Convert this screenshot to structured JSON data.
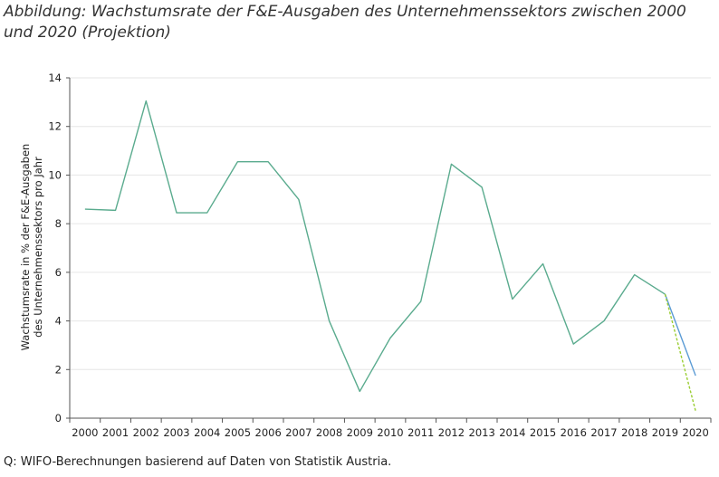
{
  "figure": {
    "title": "Abbildung: Wachstumsrate der F&E-Ausgaben des Unternehmenssektors zwischen 2000 und 2020 (Projektion)",
    "source": "Q: WIFO-Berechnungen basierend auf Daten von Statistik Austria."
  },
  "chart_data": {
    "type": "line",
    "title": "Abbildung: Wachstumsrate der F&E-Ausgaben des Unternehmenssektors zwischen 2000 und 2020 (Projektion)",
    "xlabel": "",
    "ylabel": [
      "Wachstumsrate in % der F&E-Ausgaben",
      "des Unternehmenssektors pro Jahr"
    ],
    "ylim": [
      0,
      14
    ],
    "yticks": [
      0,
      2,
      4,
      6,
      8,
      10,
      12,
      14
    ],
    "categories": [
      "2000",
      "2001",
      "2002",
      "2003",
      "2004",
      "2005",
      "2006",
      "2007",
      "2008",
      "2009",
      "2010",
      "2011",
      "2012",
      "2013",
      "2014",
      "2015",
      "2016",
      "2017",
      "2018",
      "2019",
      "2020"
    ],
    "grid": true,
    "series": [
      {
        "color": "#5aab8e",
        "dashed": false,
        "values": [
          8.6,
          8.55,
          13.05,
          8.45,
          8.45,
          10.55,
          10.55,
          9.0,
          4.0,
          1.1,
          3.3,
          4.8,
          10.45,
          9.5,
          4.9,
          6.35,
          3.05,
          4.0,
          5.9,
          5.1,
          null
        ]
      },
      {
        "color": "#5b9bd5",
        "dashed": false,
        "values": [
          null,
          null,
          null,
          null,
          null,
          null,
          null,
          null,
          null,
          null,
          null,
          null,
          null,
          null,
          null,
          null,
          null,
          null,
          null,
          5.1,
          1.75
        ]
      },
      {
        "color": "#9acd32",
        "dashed": true,
        "values": [
          null,
          null,
          null,
          null,
          null,
          null,
          null,
          null,
          null,
          null,
          null,
          null,
          null,
          null,
          null,
          null,
          null,
          null,
          null,
          5.1,
          0.3
        ]
      }
    ]
  }
}
